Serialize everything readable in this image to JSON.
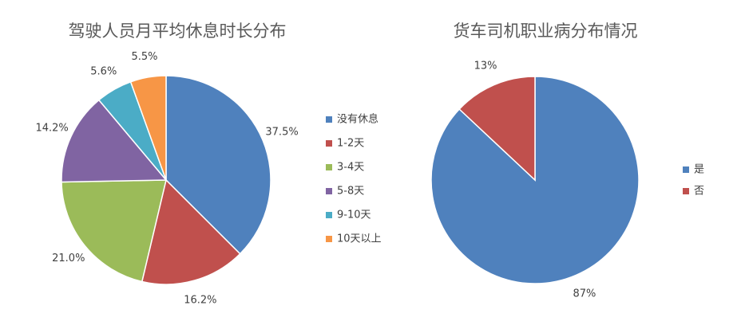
{
  "chart_data": [
    {
      "type": "pie",
      "title": "驾驶人员月平均休息时长分布",
      "categories": [
        "没有休息",
        "1-2天",
        "3-4天",
        "5-8天",
        "9-10天",
        "10天以上"
      ],
      "values": [
        37.5,
        16.2,
        21.0,
        14.2,
        5.6,
        5.5
      ],
      "value_labels": [
        "37.5%",
        "16.2%",
        "21.0%",
        "14.2%",
        "5.6%",
        "5.5%"
      ],
      "colors": [
        "#4f81bd",
        "#c0504d",
        "#9bbb59",
        "#8064a2",
        "#4bacc6",
        "#f79646"
      ],
      "legend": "right"
    },
    {
      "type": "pie",
      "title": "货车司机职业病分布情况",
      "categories": [
        "是",
        "否"
      ],
      "values": [
        87,
        13
      ],
      "value_labels": [
        "87%",
        "13%"
      ],
      "colors": [
        "#4f81bd",
        "#c0504d"
      ],
      "legend": "right"
    }
  ]
}
